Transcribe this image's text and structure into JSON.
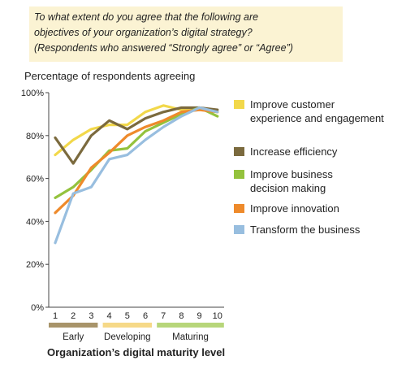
{
  "question": {
    "line1": "To what extent do you agree that the following are",
    "line2": "objectives of your organization’s digital strategy?",
    "line3": "(Respondents who answered “Strongly agree” or “Agree”)"
  },
  "chart_data": {
    "type": "line",
    "ylabel": "Percentage of respondents agreeing",
    "xlabel": "Organization’s digital maturity level",
    "x": [
      1,
      2,
      3,
      4,
      5,
      6,
      7,
      8,
      9,
      10
    ],
    "yticks": [
      "0%",
      "20%",
      "40%",
      "60%",
      "80%",
      "100%"
    ],
    "ylim": [
      0,
      100
    ],
    "grid": false,
    "legend_position": "right",
    "series": [
      {
        "name": "Improve customer experience and engagement",
        "color": "#f2d84a",
        "values": [
          71,
          78,
          83,
          85,
          85,
          91,
          94,
          92,
          93,
          91
        ]
      },
      {
        "name": "Increase efficiency",
        "color": "#7b6a3e",
        "values": [
          79,
          67,
          80,
          87,
          83,
          88,
          91,
          93,
          93,
          92
        ]
      },
      {
        "name": "Improve business decision making",
        "color": "#94c23d",
        "values": [
          51,
          56,
          64,
          73,
          74,
          82,
          86,
          90,
          93,
          89
        ]
      },
      {
        "name": "Improve innovation",
        "color": "#ee8a2b",
        "values": [
          44,
          52,
          65,
          72,
          80,
          84,
          87,
          91,
          92,
          91
        ]
      },
      {
        "name": "Transform the business",
        "color": "#98bedf",
        "values": [
          30,
          53,
          56,
          69,
          71,
          78,
          84,
          89,
          93,
          91
        ]
      }
    ],
    "groups": [
      {
        "label": "Early",
        "from": 1,
        "to": 3,
        "color": "#a8946a"
      },
      {
        "label": "Developing",
        "from": 4,
        "to": 6,
        "color": "#f6d988"
      },
      {
        "label": "Maturing",
        "from": 7,
        "to": 10,
        "color": "#b7d67a"
      }
    ]
  }
}
